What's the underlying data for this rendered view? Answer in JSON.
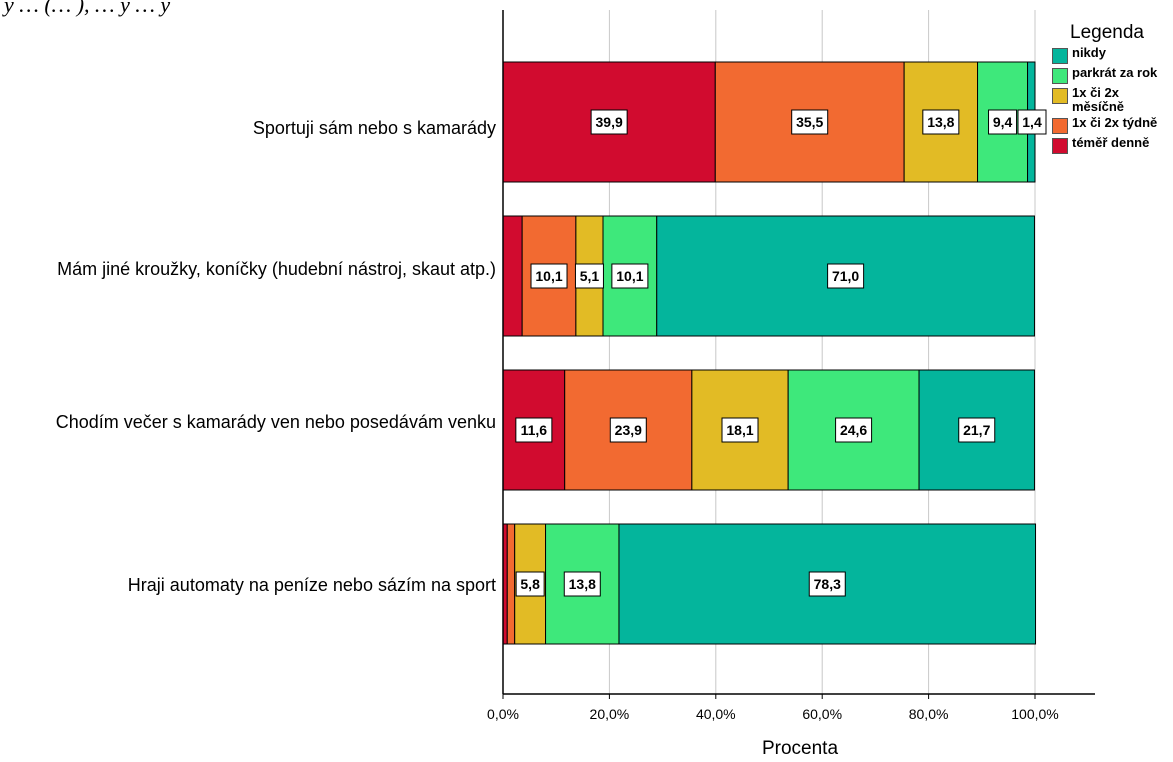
{
  "cut_title": "y … (… ), … y … y",
  "chart_data": {
    "type": "bar",
    "orientation": "horizontal",
    "stacked": true,
    "categories": [
      "Sportuji sám nebo s kamarády",
      "Mám jiné kroužky, koníčky (hudební nástroj, skaut atp.)",
      "Chodím večer s kamarády ven nebo posedávám venku",
      "Hraji automaty na peníze nebo sázím na sport"
    ],
    "series": [
      {
        "name": "téměř denně",
        "color": "#d10b2f",
        "values": [
          39.9,
          3.6,
          11.6,
          0.8
        ]
      },
      {
        "name": "1x či 2x týdně",
        "color": "#f26a31",
        "values": [
          35.5,
          10.1,
          23.9,
          1.4
        ]
      },
      {
        "name": "1x či 2x měsíčně",
        "color": "#e2bb25",
        "values": [
          13.8,
          5.1,
          18.1,
          5.8
        ]
      },
      {
        "name": "parkrát za rok",
        "color": "#3ee87b",
        "values": [
          9.4,
          10.1,
          24.6,
          13.8
        ]
      },
      {
        "name": "nikdy",
        "color": "#04b59c",
        "values": [
          1.4,
          71.0,
          21.7,
          78.3
        ]
      }
    ],
    "data_labels": [
      [
        "39,9",
        "",
        "11,6",
        ""
      ],
      [
        "35,5",
        "10,1",
        "23,9",
        ""
      ],
      [
        "13,8",
        "5,1",
        "18,1",
        "5,8"
      ],
      [
        "9,4",
        "10,1",
        "24,6",
        "13,8"
      ],
      [
        "1,4",
        "71,0",
        "21,7",
        "78,3"
      ]
    ],
    "xlabel": "Procenta",
    "xlim": [
      0,
      100
    ],
    "xticks": [
      "0,0%",
      "20,0%",
      "40,0%",
      "60,0%",
      "80,0%",
      "100,0%"
    ],
    "grid": true,
    "legend": {
      "title": "Legenda",
      "position": "top-right",
      "items": [
        {
          "label": "nikdy",
          "color": "#04b59c"
        },
        {
          "label": "parkrát za rok",
          "color": "#3ee87b"
        },
        {
          "label": "1x či 2x měsíčně",
          "color": "#e2bb25"
        },
        {
          "label": "1x či 2x týdně",
          "color": "#f26a31"
        },
        {
          "label": "téměř denně",
          "color": "#d10b2f"
        }
      ]
    }
  }
}
